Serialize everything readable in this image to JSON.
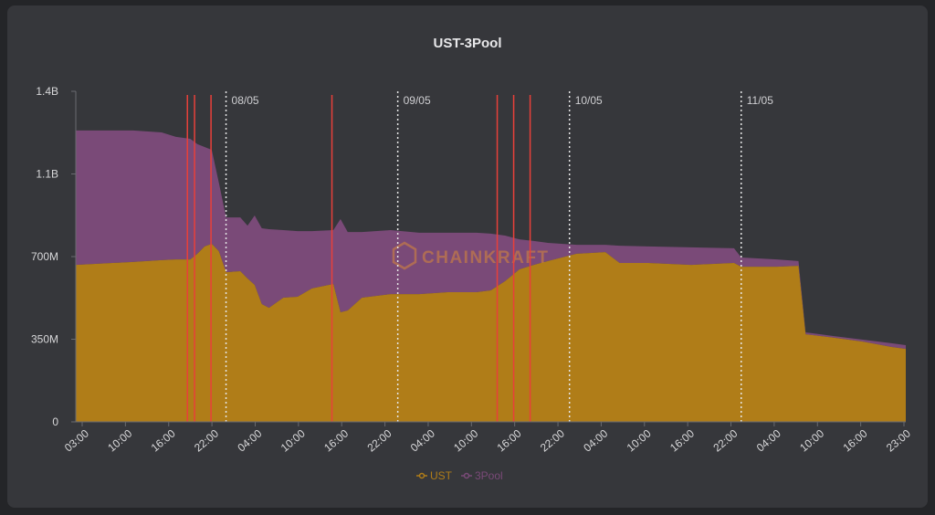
{
  "chart_data": {
    "type": "area",
    "stacked": true,
    "title": "UST-3Pool",
    "xlabel": "",
    "ylabel": "",
    "x_range": [
      "07/05 03:00",
      "11/05 23:00"
    ],
    "ylim": [
      0,
      1400000000
    ],
    "y_ticks": [
      {
        "value": 0,
        "label": "0"
      },
      {
        "value": 350000000,
        "label": "350M"
      },
      {
        "value": 700000000,
        "label": "700M"
      },
      {
        "value": 1050000000,
        "label": "1.1B"
      },
      {
        "value": 1400000000,
        "label": "1.4B"
      }
    ],
    "x_tick_labels": [
      "03:00",
      "10:00",
      "16:00",
      "22:00",
      "04:00",
      "10:00",
      "16:00",
      "22:00",
      "04:00",
      "10:00",
      "16:00",
      "22:00",
      "04:00",
      "10:00",
      "16:00",
      "22:00",
      "04:00",
      "10:00",
      "16:00",
      "23:00"
    ],
    "grid": false,
    "legend_position": "bottom",
    "x": [
      "07/05 03:00",
      "07/05 11:00",
      "07/05 15:00",
      "07/05 17:00",
      "07/05 19:00",
      "07/05 20:00",
      "07/05 21:00",
      "07/05 22:00",
      "07/05 23:00",
      "08/05 00:00",
      "08/05 02:00",
      "08/05 03:00",
      "08/05 04:00",
      "08/05 05:00",
      "08/05 06:00",
      "08/05 08:00",
      "08/05 10:00",
      "08/05 12:00",
      "08/05 15:00",
      "08/05 16:00",
      "08/05 17:00",
      "08/05 19:00",
      "08/05 23:00",
      "09/05 03:00",
      "09/05 07:00",
      "09/05 11:00",
      "09/05 13:00",
      "09/05 15:00",
      "09/05 17:00",
      "09/05 19:00",
      "09/05 21:00",
      "10/05 01:00",
      "10/05 05:00",
      "10/05 07:00",
      "10/05 11:00",
      "10/05 17:00",
      "10/05 23:00",
      "11/05 00:00",
      "11/05 05:00",
      "11/05 08:00",
      "11/05 09:00",
      "11/05 13:00",
      "11/05 17:00",
      "11/05 21:00",
      "11/05 23:00"
    ],
    "series": [
      {
        "name": "UST",
        "color": "#b07d18",
        "values_millions": [
          665,
          677,
          685,
          688,
          688,
          712,
          743,
          754,
          723,
          634,
          638,
          607,
          580,
          499,
          483,
          526,
          530,
          565,
          584,
          464,
          472,
          526,
          541,
          541,
          549,
          549,
          557,
          596,
          646,
          665,
          681,
          712,
          719,
          673,
          673,
          665,
          673,
          657,
          657,
          661,
          371,
          356,
          340,
          317,
          309
        ]
      },
      {
        "name": "3Pool",
        "color": "#7a4a78",
        "values_millions": [
          569,
          557,
          541,
          519,
          511,
          464,
          421,
          398,
          290,
          232,
          228,
          224,
          294,
          321,
          333,
          286,
          278,
          243,
          228,
          395,
          332,
          278,
          271,
          260,
          252,
          252,
          240,
          193,
          127,
          101,
          77,
          38,
          31,
          73,
          70,
          74,
          62,
          39,
          31,
          20,
          8,
          7,
          8,
          16,
          16
        ]
      }
    ],
    "date_markers": [
      {
        "time": "08/05 00:00",
        "label": "08/05"
      },
      {
        "time": "09/05 00:00",
        "label": "09/05"
      },
      {
        "time": "10/05 00:00",
        "label": "10/05"
      },
      {
        "time": "11/05 00:00",
        "label": "11/05"
      }
    ],
    "event_markers": [
      "07/05 18:36",
      "07/05 19:36",
      "07/05 21:54",
      "08/05 14:48",
      "09/05 13:54",
      "09/05 16:12",
      "09/05 18:30"
    ],
    "event_color": "#e8403a",
    "watermark": "CHAINKRAFT"
  }
}
